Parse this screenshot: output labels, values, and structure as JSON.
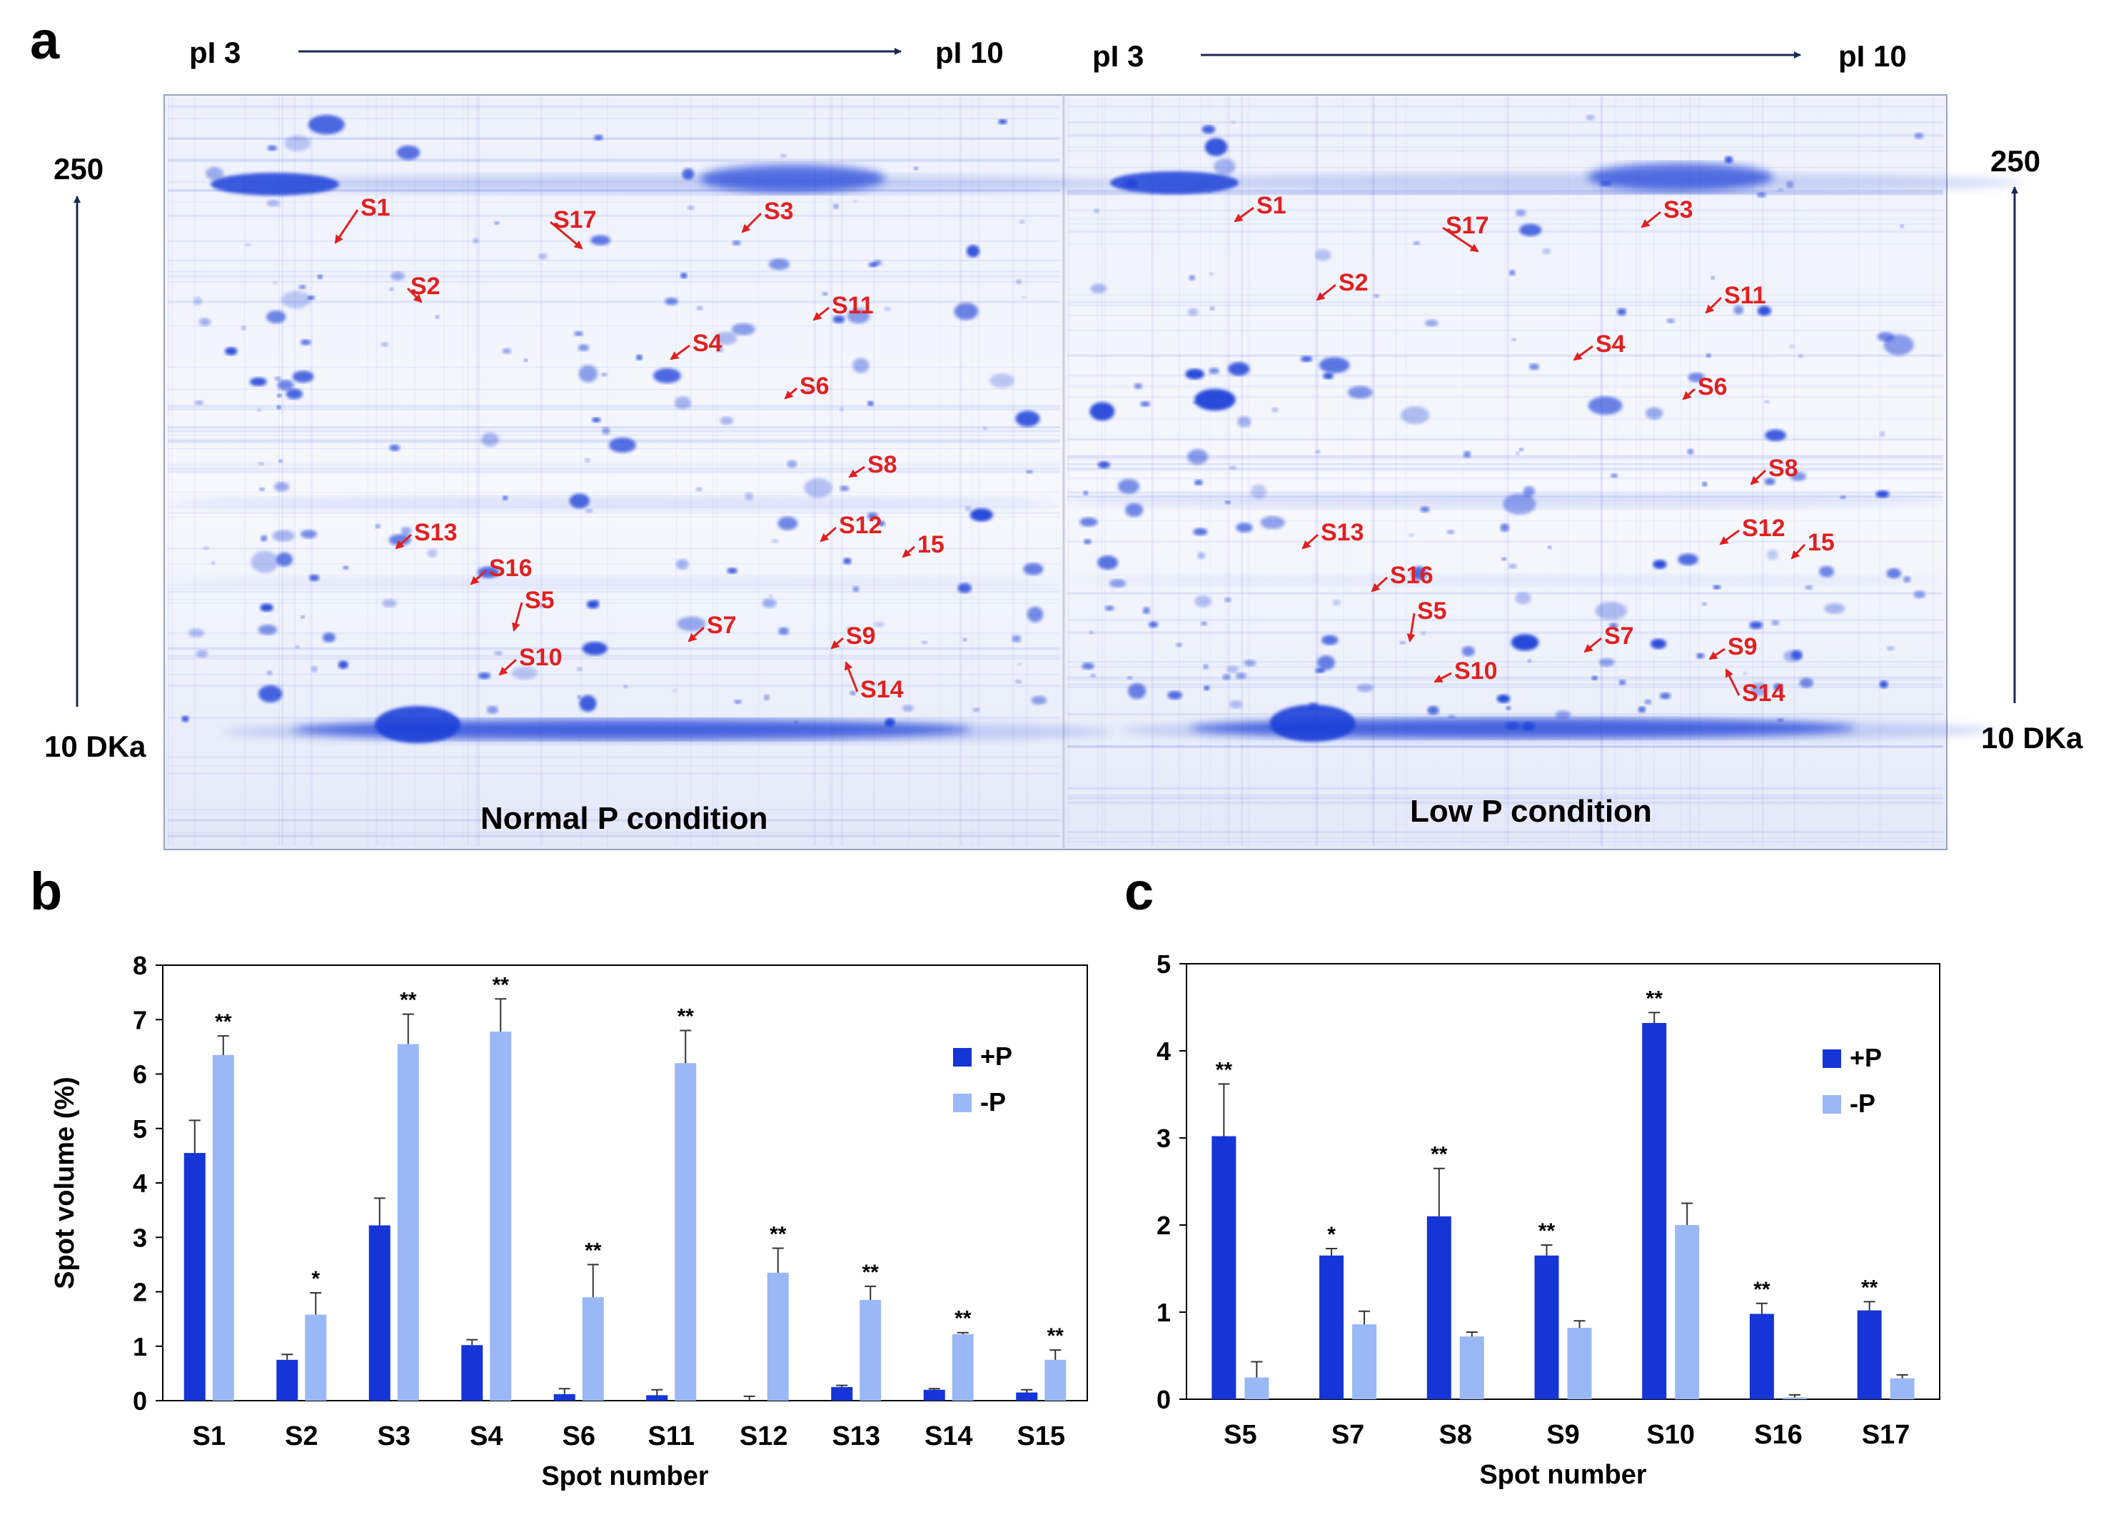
{
  "panel_labels": {
    "a": "a",
    "b": "b",
    "c": "c"
  },
  "gel": {
    "left": {
      "pi_low": "pI 3",
      "pi_high": "pI 10",
      "mw_high": "250",
      "mw_low": "10 DKa",
      "condition": "Normal P condition",
      "spot_labels": [
        "S1",
        "S2",
        "S3",
        "S4",
        "S6",
        "S8",
        "S11",
        "S12",
        "15",
        "S13",
        "S16",
        "S5",
        "S7",
        "S9",
        "S14",
        "S10",
        "S17"
      ]
    },
    "right": {
      "pi_low": "pI 3",
      "pi_high": "pI 10",
      "mw_high": "250",
      "mw_low": "10 DKa",
      "condition": "Low P condition",
      "spot_labels": [
        "S1",
        "S2",
        "S3",
        "S4",
        "S6",
        "S8",
        "S11",
        "S12",
        "15",
        "S13",
        "S16",
        "S5",
        "S7",
        "S9",
        "S14",
        "S10",
        "S17"
      ]
    },
    "colors": {
      "gel_bg": "#eef1fb",
      "protein": "#1f3fd8",
      "annotation": "#e02020"
    }
  },
  "chart_data": [
    {
      "type": "bar",
      "panel": "b",
      "categories": [
        "S1",
        "S2",
        "S3",
        "S4",
        "S6",
        "S11",
        "S12",
        "S13",
        "S14",
        "S15"
      ],
      "series": [
        {
          "name": "+P",
          "color": "#1535d6",
          "values": [
            4.55,
            0.75,
            3.22,
            1.02,
            0.12,
            0.1,
            0.0,
            0.25,
            0.2,
            0.15
          ],
          "errors": [
            0.6,
            0.1,
            0.5,
            0.1,
            0.1,
            0.1,
            0.08,
            0.03,
            0.02,
            0.05
          ]
        },
        {
          "name": "-P",
          "color": "#9ab8f5",
          "values": [
            6.35,
            1.58,
            6.55,
            6.78,
            1.9,
            6.2,
            2.35,
            1.85,
            1.22,
            0.75
          ],
          "errors": [
            0.35,
            0.4,
            0.55,
            0.6,
            0.6,
            0.6,
            0.45,
            0.25,
            0.03,
            0.18
          ]
        }
      ],
      "significance": [
        "**",
        "*",
        "**",
        "**",
        "**",
        "**",
        "**",
        "**",
        "**",
        "**"
      ],
      "ylim": [
        0,
        8
      ],
      "yticks": [
        0,
        1,
        2,
        3,
        4,
        5,
        6,
        7,
        8
      ],
      "xlabel": "Spot number",
      "ylabel": "Spot volume (%)",
      "legend_position": "top-right"
    },
    {
      "type": "bar",
      "panel": "c",
      "categories": [
        "S5",
        "S7",
        "S8",
        "S9",
        "S10",
        "S16",
        "S17"
      ],
      "series": [
        {
          "name": "+P",
          "color": "#1535d6",
          "values": [
            3.02,
            1.65,
            2.1,
            1.65,
            4.32,
            0.98,
            1.02
          ],
          "errors": [
            0.6,
            0.08,
            0.55,
            0.12,
            0.12,
            0.12,
            0.1
          ]
        },
        {
          "name": "-P",
          "color": "#9ab8f5",
          "values": [
            0.25,
            0.86,
            0.72,
            0.82,
            2.0,
            0.02,
            0.24
          ],
          "errors": [
            0.18,
            0.15,
            0.05,
            0.08,
            0.25,
            0.03,
            0.04
          ]
        }
      ],
      "significance": [
        "**",
        "*",
        "**",
        "**",
        "**",
        "**",
        "**"
      ],
      "ylim": [
        0,
        5
      ],
      "yticks": [
        0,
        1,
        2,
        3,
        4,
        5
      ],
      "xlabel": "Spot number",
      "ylabel": "",
      "legend_position": "top-right"
    }
  ]
}
